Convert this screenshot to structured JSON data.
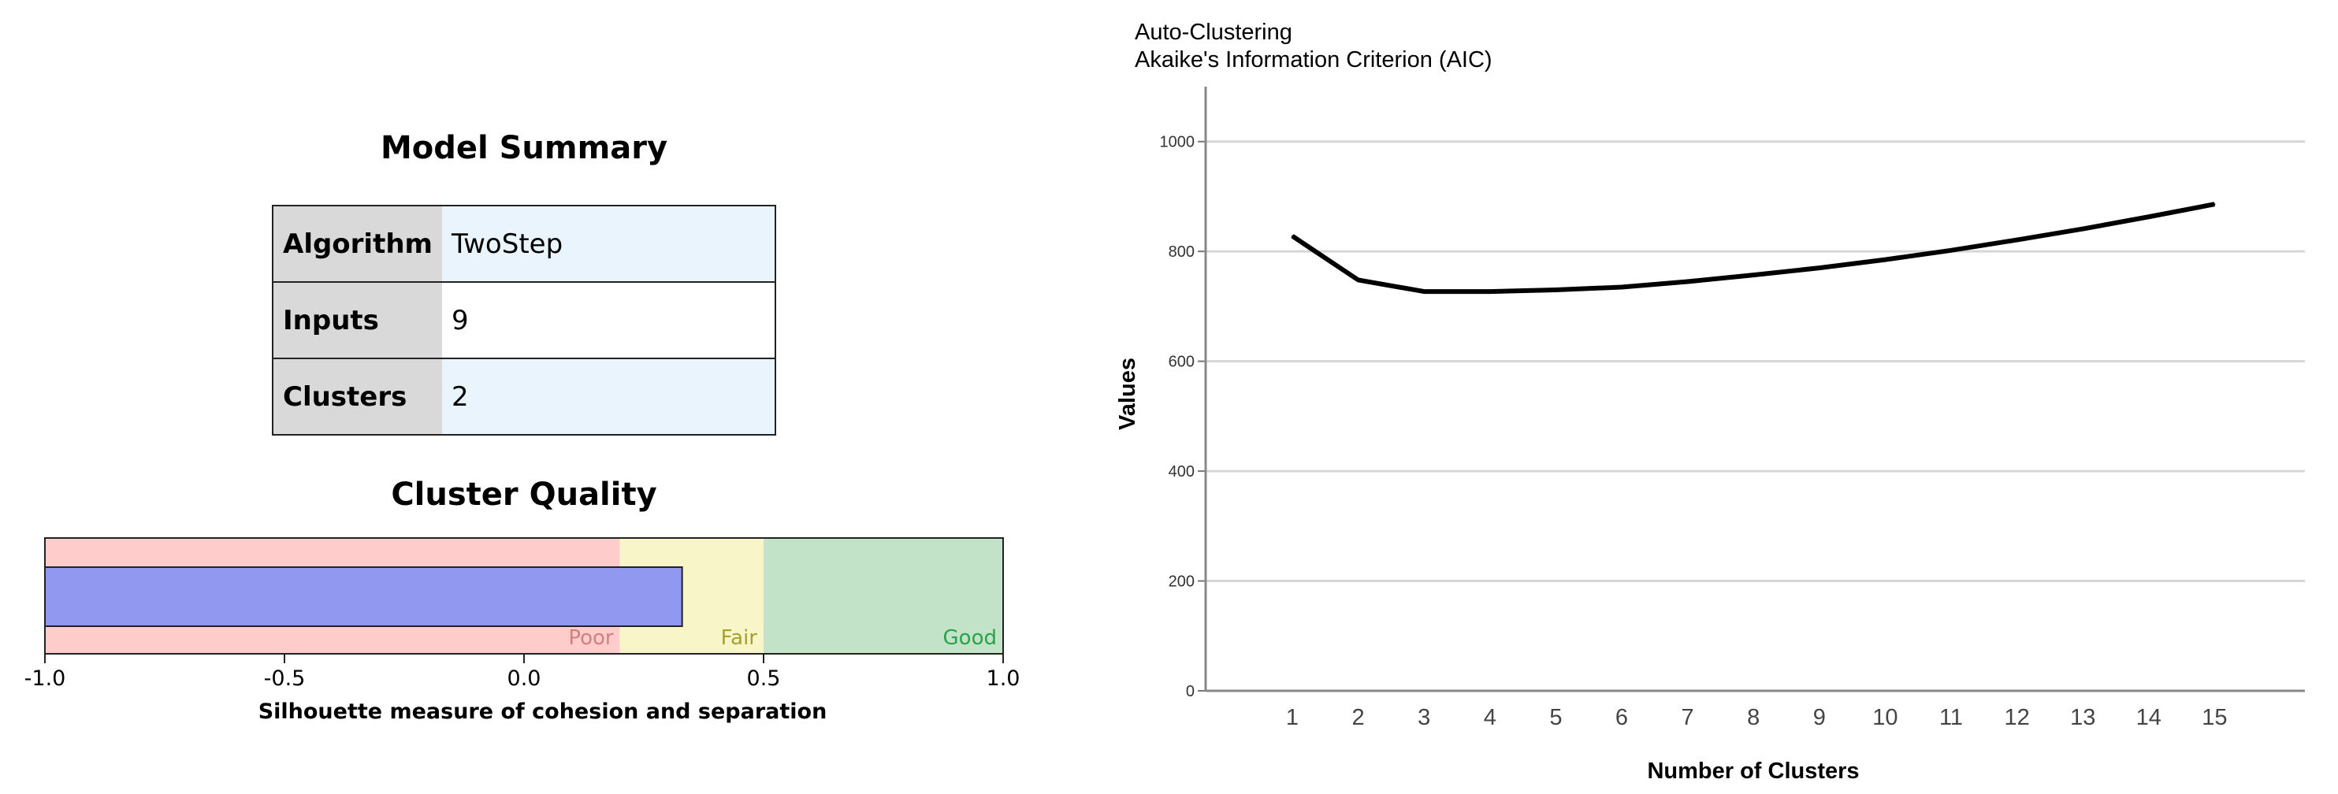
{
  "model_summary": {
    "title": "Model Summary",
    "rows": [
      {
        "label": "Algorithm",
        "value": "TwoStep"
      },
      {
        "label": "Inputs",
        "value": "9"
      },
      {
        "label": "Clusters",
        "value": "2"
      }
    ]
  },
  "chart_data": [
    {
      "type": "bar",
      "title": "Cluster Quality",
      "xlabel": "Silhouette measure of cohesion and separation",
      "xlim": [
        -1.0,
        1.0
      ],
      "ticks": [
        "-1.0",
        "-0.5",
        "0.0",
        "0.5",
        "1.0"
      ],
      "value": 0.33,
      "bands": [
        {
          "label": "Poor",
          "from": -1.0,
          "to": 0.2,
          "color": "#ffcccc",
          "text_color": "#d08080"
        },
        {
          "label": "Fair",
          "from": 0.2,
          "to": 0.5,
          "color": "#f8f6c8",
          "text_color": "#a6a030"
        },
        {
          "label": "Good",
          "from": 0.5,
          "to": 1.0,
          "color": "#c2e3c8",
          "text_color": "#2aa24a"
        }
      ],
      "bar_color": "#9098f0"
    },
    {
      "type": "line",
      "title": "Auto-Clustering",
      "subtitle": "Akaike's Information Criterion (AIC)",
      "xlabel": "Number of Clusters",
      "ylabel": "Values",
      "ylim": [
        0,
        1100
      ],
      "yticks": [
        0,
        200,
        400,
        600,
        800,
        1000
      ],
      "x": [
        1,
        2,
        3,
        4,
        5,
        6,
        7,
        8,
        9,
        10,
        11,
        12,
        13,
        14,
        15
      ],
      "y": [
        828,
        748,
        727,
        727,
        730,
        735,
        745,
        757,
        770,
        785,
        802,
        821,
        841,
        863,
        886
      ],
      "grid": true,
      "line_color": "#000000"
    }
  ]
}
